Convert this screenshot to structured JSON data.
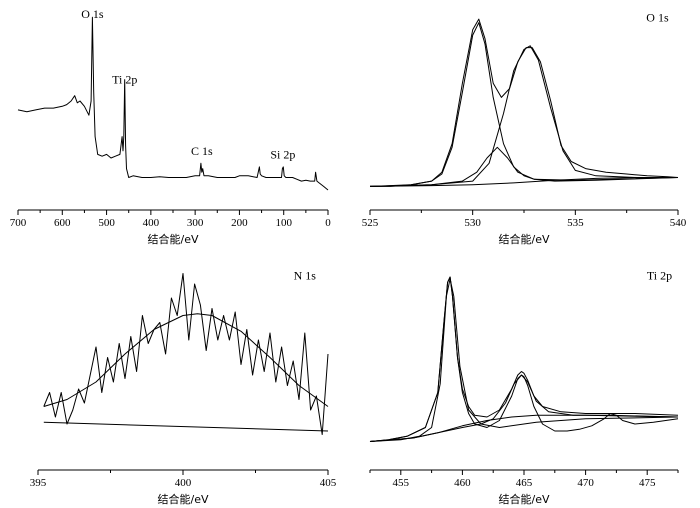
{
  "chart_data": [
    {
      "type": "line",
      "panel": "survey",
      "xlabel": "结合能/eV",
      "xlim": [
        700,
        0
      ],
      "xticks": [
        700,
        600,
        500,
        400,
        300,
        200,
        100,
        0
      ],
      "ylim": [
        0,
        1
      ],
      "reversed_x": true,
      "annotations": [
        {
          "text": "O 1s",
          "x": 532,
          "y": 0.99
        },
        {
          "text": "Ti 2p",
          "x": 459,
          "y": 0.62
        },
        {
          "text": "C 1s",
          "x": 285,
          "y": 0.22
        },
        {
          "text": "Si 2p",
          "x": 102,
          "y": 0.2
        }
      ],
      "series": [
        {
          "x": [
            700,
            680,
            660,
            640,
            620,
            600,
            590,
            580,
            572,
            566,
            560,
            550,
            540,
            535,
            532,
            529,
            526,
            520,
            510,
            500,
            490,
            480,
            470,
            465,
            463,
            461,
            459,
            457,
            455,
            450,
            440,
            420,
            400,
            380,
            360,
            340,
            320,
            300,
            290,
            287,
            285,
            283,
            280,
            270,
            250,
            230,
            210,
            200,
            180,
            160,
            155,
            153,
            150,
            140,
            120,
            105,
            103,
            101,
            99,
            95,
            80,
            70,
            60,
            50,
            40,
            30,
            28,
            25,
            20,
            10,
            0
          ],
          "y": [
            0.45,
            0.44,
            0.45,
            0.46,
            0.46,
            0.47,
            0.48,
            0.5,
            0.53,
            0.49,
            0.5,
            0.47,
            0.42,
            0.5,
            0.97,
            0.55,
            0.3,
            0.2,
            0.19,
            0.2,
            0.18,
            0.19,
            0.2,
            0.3,
            0.22,
            0.3,
            0.62,
            0.25,
            0.12,
            0.07,
            0.08,
            0.07,
            0.07,
            0.075,
            0.07,
            0.07,
            0.07,
            0.08,
            0.08,
            0.15,
            0.1,
            0.12,
            0.08,
            0.08,
            0.07,
            0.07,
            0.07,
            0.08,
            0.08,
            0.07,
            0.13,
            0.09,
            0.08,
            0.07,
            0.07,
            0.07,
            0.12,
            0.13,
            0.08,
            0.07,
            0.07,
            0.06,
            0.05,
            0.055,
            0.05,
            0.05,
            0.1,
            0.05,
            0.04,
            0.02,
            0.0
          ]
        }
      ]
    },
    {
      "type": "line",
      "panel": "O 1s",
      "xlabel": "结合能/eV",
      "xlim": [
        525,
        540
      ],
      "xticks": [
        525,
        530,
        535,
        540
      ],
      "ylim": [
        0,
        1
      ],
      "annotations": [
        {
          "text": "O 1s",
          "x": 539,
          "y": 0.97
        }
      ],
      "series": [
        {
          "role": "envelope",
          "x": [
            525,
            526,
            527,
            528,
            528.5,
            529,
            529.5,
            530,
            530.3,
            530.6,
            531,
            531.4,
            531.8,
            532.2,
            532.6,
            532.9,
            533.3,
            533.8,
            534.3,
            534.8,
            535.5,
            536.5,
            537.5,
            538.5,
            539.5,
            540
          ],
          "y": [
            0.02,
            0.02,
            0.03,
            0.05,
            0.1,
            0.26,
            0.6,
            0.9,
            0.96,
            0.85,
            0.6,
            0.52,
            0.57,
            0.72,
            0.8,
            0.8,
            0.72,
            0.5,
            0.25,
            0.16,
            0.12,
            0.1,
            0.09,
            0.08,
            0.075,
            0.07
          ]
        },
        {
          "role": "component",
          "x": [
            525,
            527,
            528,
            528.5,
            529,
            529.5,
            530,
            530.3,
            530.6,
            531,
            531.5,
            532,
            532.5,
            533,
            534,
            536,
            540
          ],
          "y": [
            0.02,
            0.03,
            0.05,
            0.09,
            0.24,
            0.55,
            0.87,
            0.94,
            0.82,
            0.52,
            0.26,
            0.13,
            0.08,
            0.06,
            0.05,
            0.055,
            0.07
          ]
        },
        {
          "role": "component",
          "x": [
            525,
            528,
            529.5,
            530.2,
            530.7,
            531.2,
            531.7,
            532.2,
            533,
            535,
            540
          ],
          "y": [
            0.02,
            0.03,
            0.05,
            0.1,
            0.18,
            0.24,
            0.18,
            0.1,
            0.06,
            0.055,
            0.07
          ]
        },
        {
          "role": "component",
          "x": [
            525,
            528,
            530,
            530.8,
            531.5,
            532,
            532.5,
            532.8,
            533.2,
            533.8,
            534.4,
            535,
            536,
            538,
            540
          ],
          "y": [
            0.02,
            0.03,
            0.05,
            0.15,
            0.43,
            0.67,
            0.79,
            0.81,
            0.73,
            0.46,
            0.22,
            0.11,
            0.08,
            0.07,
            0.07
          ]
        },
        {
          "role": "background",
          "x": [
            525,
            528,
            530,
            532,
            534,
            536,
            538,
            540
          ],
          "y": [
            0.02,
            0.025,
            0.03,
            0.04,
            0.055,
            0.065,
            0.07,
            0.07
          ]
        }
      ]
    },
    {
      "type": "line",
      "panel": "N 1s",
      "xlabel": "结合能/eV",
      "xlim": [
        395,
        405
      ],
      "xticks": [
        395,
        400,
        405
      ],
      "ylim": [
        0,
        1
      ],
      "annotations": [
        {
          "text": "N 1s",
          "x": 404.2,
          "y": 0.97
        }
      ],
      "series": [
        {
          "role": "data",
          "x": [
            395.2,
            395.4,
            395.6,
            395.8,
            396,
            396.2,
            396.4,
            396.6,
            396.8,
            397,
            397.2,
            397.4,
            397.6,
            397.8,
            398,
            398.2,
            398.4,
            398.6,
            398.8,
            399,
            399.2,
            399.4,
            399.6,
            399.8,
            400,
            400.2,
            400.4,
            400.6,
            400.8,
            401,
            401.2,
            401.4,
            401.6,
            401.8,
            402,
            402.2,
            402.4,
            402.6,
            402.8,
            403,
            403.2,
            403.4,
            403.6,
            403.8,
            404,
            404.2,
            404.4,
            404.6,
            404.8,
            405
          ],
          "y": [
            0.22,
            0.3,
            0.16,
            0.3,
            0.12,
            0.2,
            0.32,
            0.24,
            0.4,
            0.56,
            0.3,
            0.5,
            0.36,
            0.58,
            0.38,
            0.62,
            0.42,
            0.74,
            0.58,
            0.66,
            0.7,
            0.52,
            0.84,
            0.74,
            0.98,
            0.6,
            0.92,
            0.8,
            0.54,
            0.78,
            0.6,
            0.74,
            0.6,
            0.76,
            0.46,
            0.66,
            0.4,
            0.6,
            0.42,
            0.64,
            0.36,
            0.56,
            0.34,
            0.48,
            0.26,
            0.64,
            0.2,
            0.28,
            0.06,
            0.52
          ]
        },
        {
          "role": "fit",
          "x": [
            395.2,
            396,
            397,
            398,
            399,
            400,
            400.5,
            401,
            402,
            403,
            404,
            405
          ],
          "y": [
            0.22,
            0.26,
            0.36,
            0.52,
            0.66,
            0.74,
            0.75,
            0.74,
            0.65,
            0.5,
            0.34,
            0.22
          ]
        },
        {
          "role": "background",
          "x": [
            395.2,
            405
          ],
          "y": [
            0.13,
            0.08
          ]
        }
      ]
    },
    {
      "type": "line",
      "panel": "Ti 2p",
      "xlabel": "结合能/eV",
      "xlim": [
        452.5,
        477.5
      ],
      "xticks": [
        455,
        460,
        465,
        470,
        475
      ],
      "ylim": [
        0,
        1
      ],
      "annotations": [
        {
          "text": "Ti 2p",
          "x": 476,
          "y": 0.97
        }
      ],
      "series": [
        {
          "role": "data",
          "x": [
            452.5,
            454,
            455.5,
            457,
            458,
            458.5,
            458.8,
            459,
            459.2,
            459.6,
            460,
            460.5,
            461,
            462,
            463,
            464,
            464.5,
            464.8,
            465,
            465.3,
            465.8,
            466.5,
            467.5,
            468.5,
            469.5,
            470.5,
            471.5,
            472,
            472.5,
            473,
            474,
            475.5,
            477.5
          ],
          "y": [
            0.02,
            0.03,
            0.05,
            0.1,
            0.3,
            0.7,
            0.93,
            0.96,
            0.85,
            0.5,
            0.3,
            0.18,
            0.12,
            0.1,
            0.14,
            0.28,
            0.38,
            0.4,
            0.39,
            0.34,
            0.22,
            0.12,
            0.08,
            0.08,
            0.09,
            0.11,
            0.15,
            0.18,
            0.17,
            0.14,
            0.12,
            0.13,
            0.15
          ]
        },
        {
          "role": "envelope",
          "x": [
            452.5,
            454,
            455.5,
            457,
            458,
            458.5,
            458.8,
            459,
            459.2,
            459.6,
            460,
            460.5,
            461,
            462,
            463,
            464,
            464.5,
            464.8,
            465,
            465.3,
            465.8,
            466.5,
            468,
            470,
            472,
            474,
            477.5
          ],
          "y": [
            0.02,
            0.03,
            0.05,
            0.1,
            0.3,
            0.7,
            0.93,
            0.96,
            0.85,
            0.5,
            0.32,
            0.22,
            0.17,
            0.16,
            0.2,
            0.32,
            0.4,
            0.42,
            0.41,
            0.37,
            0.28,
            0.22,
            0.19,
            0.18,
            0.18,
            0.18,
            0.17
          ]
        },
        {
          "role": "component",
          "x": [
            452.5,
            455,
            456.5,
            457.5,
            458.2,
            458.7,
            459,
            459.3,
            459.8,
            460.5,
            461.5,
            463,
            466,
            470,
            477.5
          ],
          "y": [
            0.02,
            0.03,
            0.05,
            0.1,
            0.35,
            0.85,
            0.95,
            0.85,
            0.45,
            0.2,
            0.12,
            0.1,
            0.13,
            0.15,
            0.16
          ]
        },
        {
          "role": "component",
          "x": [
            452.5,
            456,
            458,
            460,
            461.5,
            462.5,
            463.5,
            464.2,
            464.8,
            465.3,
            466,
            467,
            469,
            472,
            477.5
          ],
          "y": [
            0.02,
            0.04,
            0.07,
            0.1,
            0.12,
            0.15,
            0.24,
            0.35,
            0.4,
            0.36,
            0.25,
            0.19,
            0.17,
            0.17,
            0.16
          ]
        },
        {
          "role": "background",
          "x": [
            452.5,
            456,
            458,
            460,
            462,
            464,
            466,
            470,
            477.5
          ],
          "y": [
            0.02,
            0.04,
            0.07,
            0.11,
            0.14,
            0.16,
            0.17,
            0.17,
            0.16
          ]
        }
      ]
    }
  ]
}
